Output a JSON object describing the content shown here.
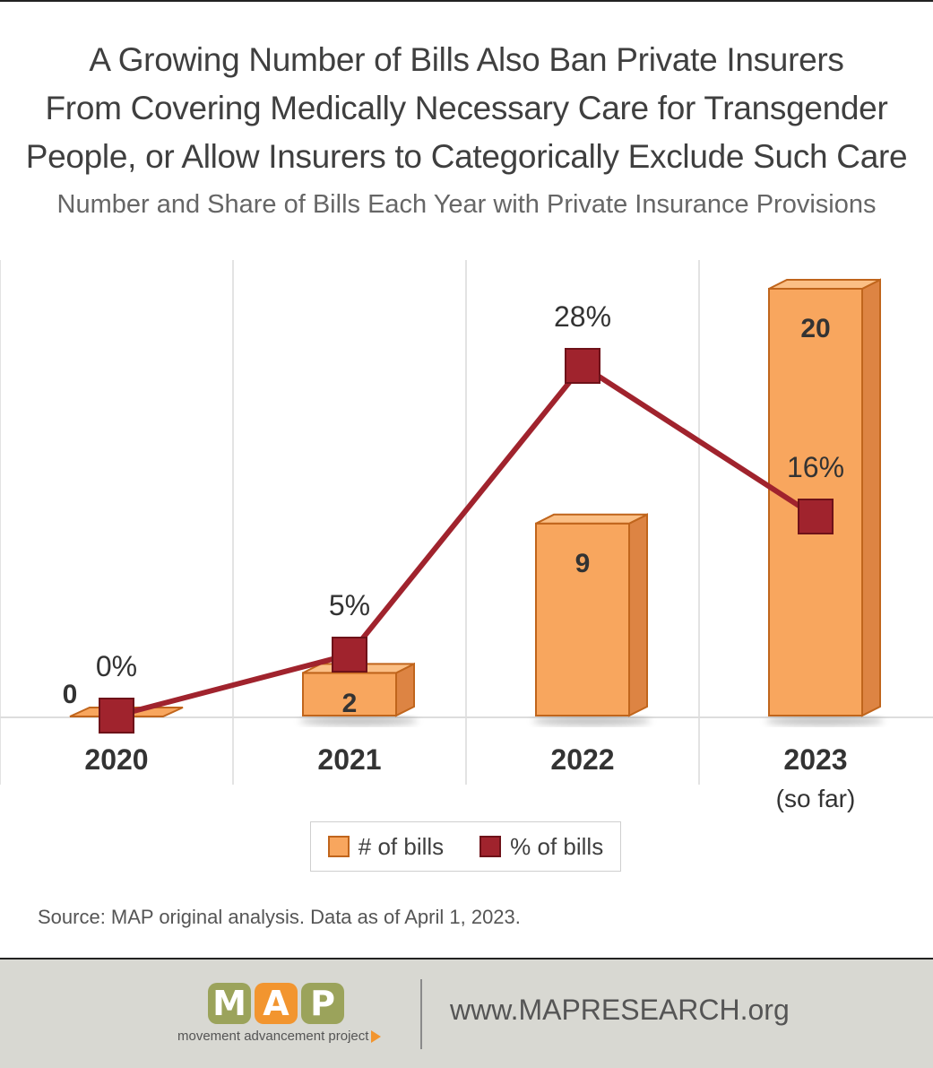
{
  "header": {
    "title_lines": [
      "A Growing Number of Bills Also Ban Private Insurers",
      "From Covering Medically Necessary Care for Transgender",
      "People, or Allow Insurers to Categorically Exclude Such Care"
    ],
    "subtitle": "Number and Share of Bills Each Year with Private Insurance Provisions"
  },
  "chart_data": {
    "type": "bar",
    "categories": [
      "2020",
      "2021",
      "2022",
      "2023"
    ],
    "category_notes": [
      "",
      "",
      "",
      "(so far)"
    ],
    "series": [
      {
        "name": "# of bills",
        "type": "bar",
        "values": [
          0,
          2,
          9,
          20
        ],
        "labels": [
          "0",
          "2",
          "9",
          "20"
        ],
        "color": "#f8a65e"
      },
      {
        "name": "% of bills",
        "type": "line",
        "values": [
          0,
          5,
          28,
          16
        ],
        "labels": [
          "0%",
          "5%",
          "28%",
          "16%"
        ],
        "color": "#a0232d"
      }
    ],
    "grid": true,
    "legend": "bottom"
  },
  "legend": {
    "bills_label": "# of bills",
    "pct_label": "% of bills"
  },
  "source": "Source: MAP original analysis. Data as of April 1, 2023.",
  "footer": {
    "logo_letters": [
      "M",
      "A",
      "P"
    ],
    "logo_colors": [
      "#9ba35b",
      "#f2952f",
      "#9ba35b"
    ],
    "tagline": "movement advancement project",
    "url": "www.MAPRESEARCH.org"
  }
}
